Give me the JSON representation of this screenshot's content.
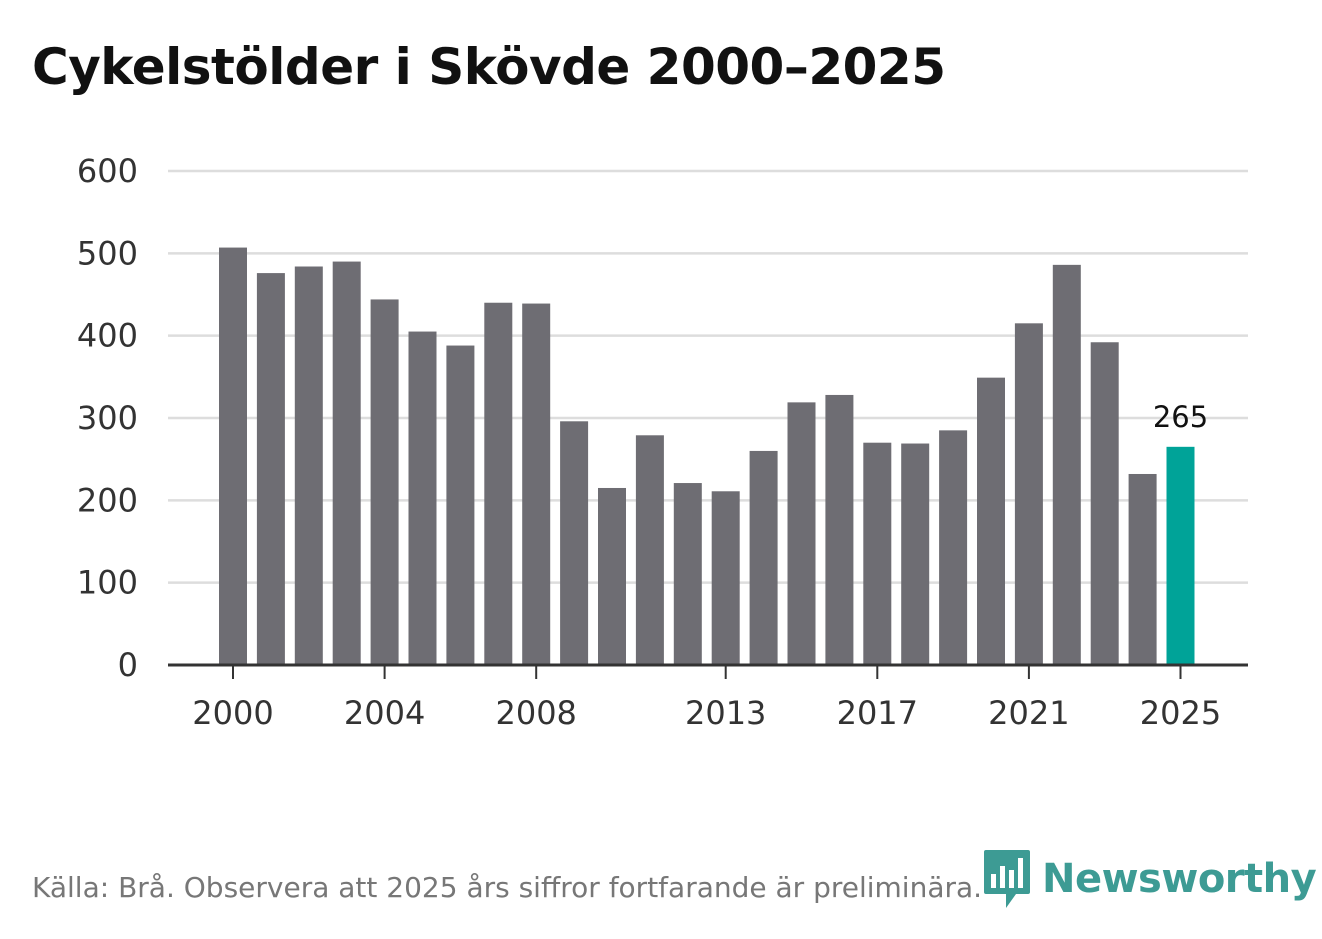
{
  "title": "Cykelstölder i Skövde 2000–2025",
  "source": "Källa: Brå. Observera att 2025 års siffror fortfarande är preliminära.",
  "brand": "Newsworthy",
  "colors": {
    "bar": "#6e6d73",
    "highlight": "#00a398",
    "grid": "#dddddd",
    "axis": "#333333",
    "brand": "#3d9b94"
  },
  "chart_data": {
    "type": "bar",
    "title": "Cykelstölder i Skövde 2000–2025",
    "xlabel": "",
    "ylabel": "",
    "ylim": [
      0,
      600
    ],
    "yticks": [
      0,
      100,
      200,
      300,
      400,
      500,
      600
    ],
    "xtick_labels": [
      "2000",
      "2004",
      "2008",
      "2013",
      "2017",
      "2021",
      "2025"
    ],
    "categories": [
      "2000",
      "2001",
      "2002",
      "2003",
      "2004",
      "2005",
      "2006",
      "2007",
      "2008",
      "2009",
      "2010",
      "2011",
      "2012",
      "2013",
      "2014",
      "2015",
      "2016",
      "2017",
      "2018",
      "2019",
      "2020",
      "2021",
      "2022",
      "2023",
      "2024",
      "2025"
    ],
    "values": [
      507,
      476,
      484,
      490,
      444,
      405,
      388,
      440,
      439,
      296,
      215,
      279,
      221,
      211,
      260,
      319,
      328,
      270,
      269,
      285,
      349,
      415,
      486,
      392,
      232,
      265
    ],
    "highlight_category": "2025",
    "annotations": [
      {
        "category": "2025",
        "text": "265"
      }
    ],
    "grid": true
  }
}
